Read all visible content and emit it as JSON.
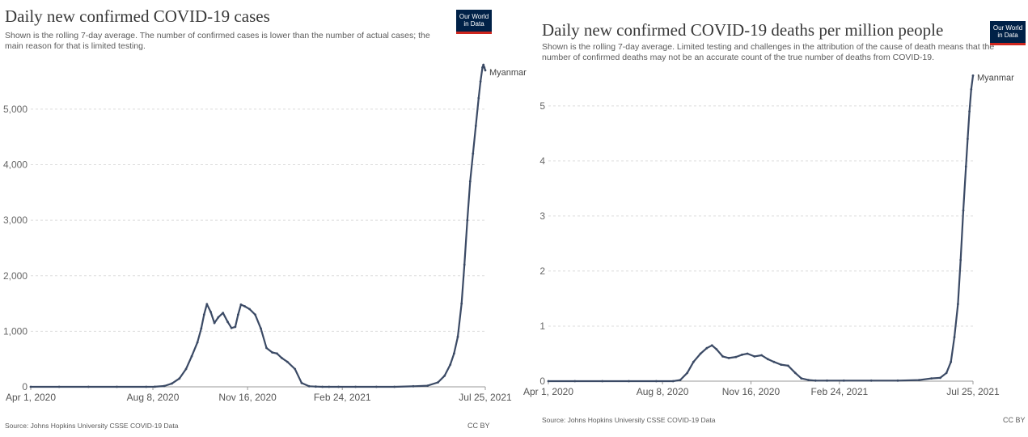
{
  "chart_data": [
    {
      "type": "line",
      "title": "Daily new confirmed COVID-19 cases",
      "subtitle": "Shown is the rolling 7-day average. The number of confirmed cases is lower than the number of actual cases; the main reason for that is limited testing.",
      "logo": "Our World in Data",
      "source": "Source: Johns Hopkins University CSSE COVID-19 Data",
      "license": "CC BY",
      "x_ticks": [
        "Apr 1, 2020",
        "Aug 8, 2020",
        "Nov 16, 2020",
        "Feb 24, 2021",
        "Jul 25, 2021"
      ],
      "y_ticks": [
        "0",
        "1,000",
        "2,000",
        "3,000",
        "4,000",
        "5,000"
      ],
      "ylim": [
        0,
        5800
      ],
      "xlim": [
        "2020-04-01",
        "2021-07-25"
      ],
      "grid": "horizontal dashed",
      "series": [
        {
          "name": "Myanmar",
          "color": "#3b4a65",
          "x": [
            "2020-04-01",
            "2020-05-01",
            "2020-06-01",
            "2020-07-01",
            "2020-08-01",
            "2020-08-10",
            "2020-08-20",
            "2020-08-28",
            "2020-09-05",
            "2020-09-12",
            "2020-09-18",
            "2020-09-24",
            "2020-09-28",
            "2020-10-01",
            "2020-10-04",
            "2020-10-08",
            "2020-10-12",
            "2020-10-16",
            "2020-10-21",
            "2020-10-26",
            "2020-10-30",
            "2020-11-03",
            "2020-11-06",
            "2020-11-09",
            "2020-11-13",
            "2020-11-18",
            "2020-11-24",
            "2020-11-30",
            "2020-12-06",
            "2020-12-12",
            "2020-12-17",
            "2020-12-22",
            "2020-12-28",
            "2021-01-05",
            "2021-01-12",
            "2021-01-20",
            "2021-01-27",
            "2021-02-03",
            "2021-02-10",
            "2021-02-20",
            "2021-03-10",
            "2021-04-01",
            "2021-04-20",
            "2021-05-10",
            "2021-05-25",
            "2021-06-05",
            "2021-06-12",
            "2021-06-18",
            "2021-06-22",
            "2021-06-26",
            "2021-06-30",
            "2021-07-03",
            "2021-07-06",
            "2021-07-09",
            "2021-07-12",
            "2021-07-15",
            "2021-07-18",
            "2021-07-20",
            "2021-07-22",
            "2021-07-23",
            "2021-07-24",
            "2021-07-25"
          ],
          "y": [
            0,
            0,
            0,
            0,
            0,
            2,
            15,
            60,
            150,
            320,
            550,
            800,
            1050,
            1300,
            1490,
            1350,
            1150,
            1250,
            1330,
            1170,
            1060,
            1080,
            1300,
            1480,
            1450,
            1400,
            1300,
            1050,
            700,
            620,
            600,
            520,
            450,
            320,
            70,
            10,
            5,
            0,
            0,
            0,
            0,
            0,
            0,
            10,
            20,
            80,
            200,
            400,
            600,
            900,
            1500,
            2200,
            3000,
            3700,
            4200,
            4700,
            5200,
            5500,
            5750,
            5800,
            5750,
            5700
          ]
        }
      ]
    },
    {
      "type": "line",
      "title": "Daily new confirmed COVID-19 deaths per million people",
      "subtitle": "Shown is the rolling 7-day average. Limited testing and challenges in the attribution of the cause of death means that the number of confirmed deaths may not be an accurate count of the true number of deaths from COVID-19.",
      "logo": "Our World in Data",
      "source": "Source: Johns Hopkins University CSSE COVID-19 Data",
      "license": "CC BY",
      "x_ticks": [
        "Apr 1, 2020",
        "Aug 8, 2020",
        "Nov 16, 2020",
        "Feb 24, 2021",
        "Jul 25, 2021"
      ],
      "y_ticks": [
        "0",
        "1",
        "2",
        "3",
        "4",
        "5"
      ],
      "ylim": [
        0,
        5.6
      ],
      "xlim": [
        "2020-04-01",
        "2021-07-25"
      ],
      "grid": "horizontal dashed",
      "series": [
        {
          "name": "Myanmar",
          "color": "#3b4a65",
          "x": [
            "2020-04-01",
            "2020-05-01",
            "2020-06-01",
            "2020-07-01",
            "2020-08-01",
            "2020-08-20",
            "2020-08-28",
            "2020-09-05",
            "2020-09-12",
            "2020-09-20",
            "2020-09-27",
            "2020-10-03",
            "2020-10-08",
            "2020-10-15",
            "2020-10-22",
            "2020-10-30",
            "2020-11-06",
            "2020-11-12",
            "2020-11-20",
            "2020-11-28",
            "2020-12-05",
            "2020-12-12",
            "2020-12-20",
            "2020-12-28",
            "2021-01-05",
            "2021-01-12",
            "2021-01-20",
            "2021-01-28",
            "2021-02-10",
            "2021-03-01",
            "2021-04-01",
            "2021-05-01",
            "2021-05-25",
            "2021-06-08",
            "2021-06-18",
            "2021-06-25",
            "2021-06-30",
            "2021-07-04",
            "2021-07-08",
            "2021-07-11",
            "2021-07-14",
            "2021-07-17",
            "2021-07-19",
            "2021-07-21",
            "2021-07-23",
            "2021-07-25"
          ],
          "y": [
            0,
            0,
            0,
            0,
            0,
            0,
            0.02,
            0.15,
            0.35,
            0.5,
            0.6,
            0.65,
            0.58,
            0.45,
            0.42,
            0.44,
            0.48,
            0.5,
            0.45,
            0.47,
            0.4,
            0.35,
            0.3,
            0.28,
            0.15,
            0.05,
            0.02,
            0.01,
            0.01,
            0.01,
            0.01,
            0.01,
            0.02,
            0.05,
            0.06,
            0.15,
            0.35,
            0.8,
            1.4,
            2.2,
            3.1,
            3.9,
            4.4,
            4.9,
            5.3,
            5.55
          ]
        }
      ]
    }
  ]
}
